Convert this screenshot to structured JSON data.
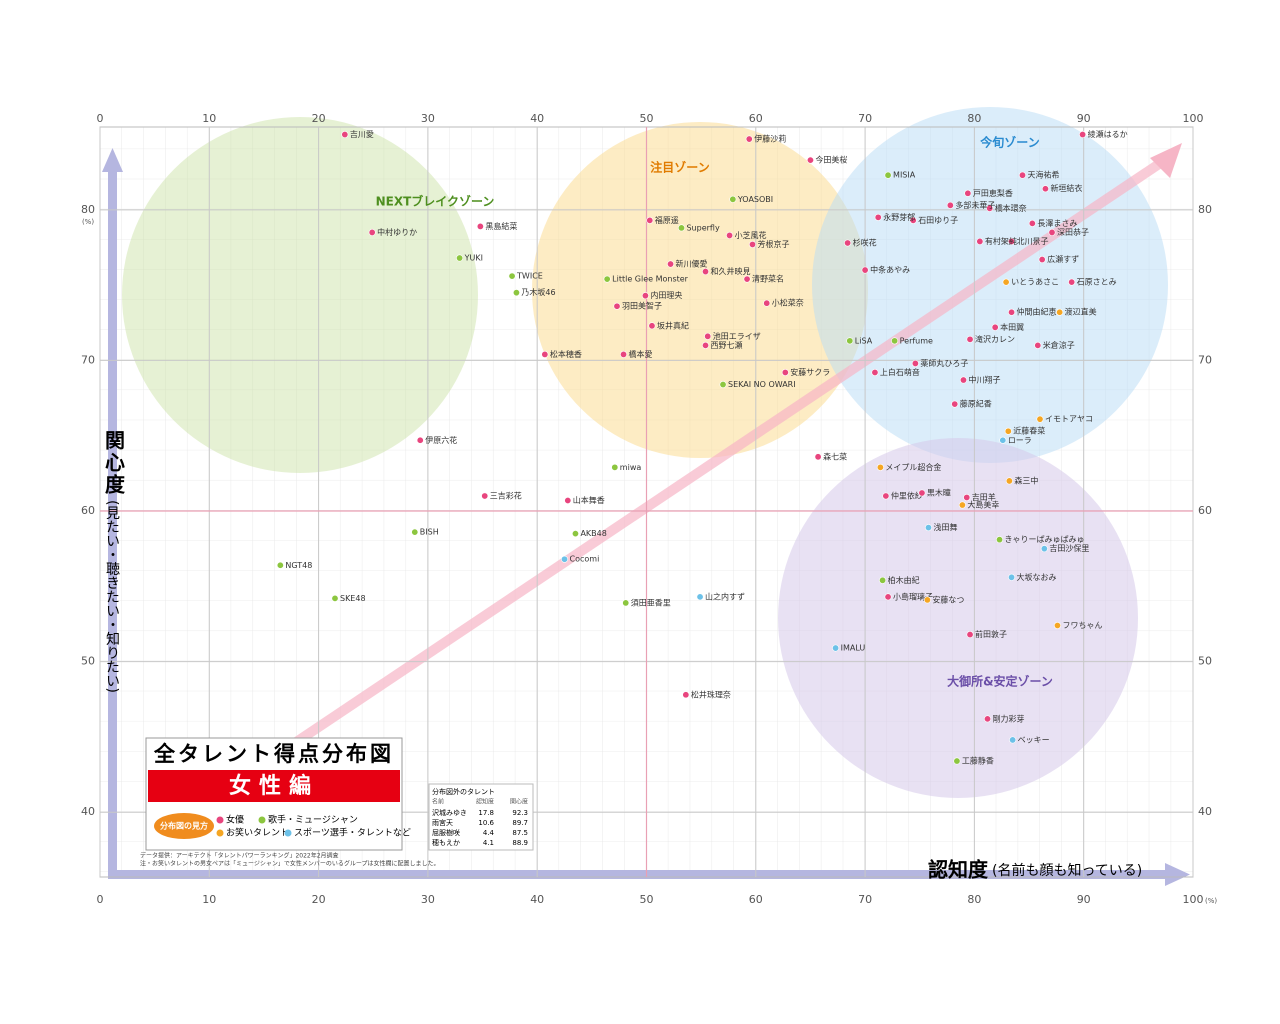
{
  "chart_data": {
    "type": "scatter",
    "xlim": [
      0,
      100
    ],
    "ylim": [
      35.7,
      85.5
    ],
    "xticks": [
      0,
      10,
      20,
      30,
      40,
      50,
      60,
      70,
      80,
      90,
      100
    ],
    "yticks": [
      40,
      50,
      60,
      70,
      80
    ],
    "x_unit": "(%)",
    "y_unit": "(%)",
    "x_reference": 50,
    "y_reference": 60,
    "grid": true,
    "x_label": "認知度",
    "x_label_note": "(名前も顔も知っている)",
    "y_label": "関心度",
    "y_label_note": "(見たい・聴きたい・知りたい)",
    "title": "全タレント得点分布図",
    "subtitle": "女性編",
    "legend_title": "分布図の見方",
    "zones": [
      "NEXTブレイクゾーン",
      "注目ゾーン",
      "今旬ゾーン",
      "大御所&安定ゾーン"
    ],
    "source": "データ提供：アーキテクト「タレントパワーランキング」2022年2月調査",
    "note": "注・お笑いタレントの男女ペアは「ミュージシャン」で女性メンバーのいるグループは女性欄に配置しました。",
    "outside_table": {
      "title": "分布図外のタレント",
      "columns": [
        "名前",
        "認知度",
        "関心度"
      ],
      "rows": [
        [
          "沢城みゆき",
          17.8,
          92.3
        ],
        [
          "雨宮天",
          10.6,
          89.7
        ],
        [
          "屈服樹咲",
          4.4,
          87.5
        ],
        [
          "穂もえか",
          4.1,
          88.9
        ]
      ]
    },
    "series": [
      {
        "name": "女優",
        "color": "#e8457e",
        "labels": [
          "綾瀬はるか",
          "伊藤沙莉",
          "今田美桜",
          "天海祐希",
          "新垣結衣",
          "戸田恵梨香",
          "長澤まさみ",
          "深田恭子",
          "北川景子",
          "広瀬すず",
          "石原さとみ",
          "米倉涼子",
          "本田翼",
          "仲間由紀恵",
          "有村架純",
          "橋本環奈",
          "多部未華子",
          "石田ゆり子",
          "永野芽郁",
          "杉咲花",
          "中条あやみ",
          "小松菜奈",
          "清野菜名",
          "新川優愛",
          "福原遥",
          "小芝風花",
          "芳根京子",
          "和久井映見",
          "内田理央",
          "羽田美智子",
          "坂井真紀",
          "池田エライザ",
          "西野七瀬",
          "安藤サクラ",
          "上白石萌音",
          "薬師丸ひろ子",
          "中川翔子",
          "藤原紀香",
          "森七菜",
          "仲里依紗",
          "黒木瞳",
          "吉田羊",
          "小島瑠璃子",
          "前田敦子",
          "剛力彩芽",
          "松井珠理奈",
          "山本舞香",
          "三吉彩花",
          "黒島結菜",
          "中村ゆりか",
          "吉川愛",
          "滝沢カレン",
          "橋本愛",
          "松本穂香",
          "伊原六花"
        ],
        "x": [
          89.9,
          59.4,
          65.0,
          84.4,
          86.5,
          79.4,
          85.3,
          87.1,
          83.4,
          86.2,
          88.9,
          85.8,
          81.9,
          83.4,
          80.5,
          81.4,
          77.8,
          74.4,
          71.2,
          68.4,
          70.0,
          61.0,
          59.2,
          52.2,
          50.3,
          57.6,
          59.7,
          55.4,
          49.9,
          47.3,
          50.5,
          55.6,
          55.4,
          62.7,
          70.9,
          74.6,
          79.0,
          78.2,
          65.7,
          71.9,
          75.2,
          79.3,
          72.1,
          79.6,
          81.2,
          53.6,
          42.8,
          35.2,
          34.8,
          24.9,
          22.4,
          79.6,
          47.9,
          40.7,
          29.3
        ],
        "y": [
          85.0,
          84.7,
          83.3,
          82.3,
          81.4,
          81.1,
          79.1,
          78.5,
          77.9,
          76.7,
          75.2,
          71.0,
          72.2,
          73.2,
          77.9,
          80.1,
          80.3,
          79.3,
          79.5,
          77.8,
          76.0,
          73.8,
          75.4,
          76.4,
          79.3,
          78.3,
          77.7,
          75.9,
          74.3,
          73.6,
          72.3,
          71.6,
          71.0,
          69.2,
          69.2,
          69.8,
          68.7,
          67.1,
          63.6,
          61.0,
          61.2,
          60.9,
          54.3,
          51.8,
          46.2,
          47.8,
          60.7,
          61.0,
          78.9,
          78.5,
          85.0,
          71.4,
          70.4,
          70.4,
          64.7
        ]
      },
      {
        "name": "歌手・ミュージシャン",
        "color": "#8cc63f",
        "labels": [
          "MISIA",
          "YOASOBI",
          "Superfly",
          "Little Glee Monster",
          "SEKAI NO OWARI",
          "Perfume",
          "LiSA",
          "きゃりーぱみゅぱみゅ",
          "柏木由紀",
          "工藤静香",
          "須田亜香里",
          "AKB48",
          "miwa",
          "BISH",
          "NGT48",
          "SKE48",
          "TWICE",
          "乃木坂46",
          "YUKI"
        ],
        "x": [
          72.1,
          57.9,
          53.2,
          46.4,
          57.0,
          72.7,
          68.6,
          82.3,
          71.6,
          78.4,
          48.1,
          43.5,
          47.1,
          28.8,
          16.5,
          21.5,
          37.7,
          38.1,
          32.9
        ],
        "y": [
          82.3,
          80.7,
          78.8,
          75.4,
          68.4,
          71.3,
          71.3,
          58.1,
          55.4,
          43.4,
          53.9,
          58.5,
          62.9,
          58.6,
          56.4,
          54.2,
          75.6,
          74.5,
          76.8
        ]
      },
      {
        "name": "お笑いタレント",
        "color": "#f5a623",
        "labels": [
          "渡辺直美",
          "いとうあさこ",
          "イモトアヤコ",
          "近藤春菜",
          "森三中",
          "メイプル超合金",
          "大島美幸",
          "安藤なつ",
          "フワちゃん"
        ],
        "x": [
          87.8,
          82.9,
          86.0,
          83.1,
          83.2,
          71.4,
          78.9,
          75.7,
          87.6
        ],
        "y": [
          73.2,
          75.2,
          66.1,
          65.3,
          62.0,
          62.9,
          60.4,
          54.1,
          52.4
        ]
      },
      {
        "name": "スポーツ選手・タレントなど",
        "color": "#6cc1e8",
        "labels": [
          "浅田舞",
          "吉田沙保里",
          "大坂なおみ",
          "IMALU",
          "ベッキー",
          "山之内すず",
          "Cocomi",
          "ローラ"
        ],
        "x": [
          75.8,
          86.4,
          83.4,
          67.3,
          83.5,
          54.9,
          42.5,
          82.6
        ],
        "y": [
          58.9,
          57.5,
          55.6,
          50.9,
          44.8,
          54.3,
          56.8,
          64.7
        ]
      }
    ]
  }
}
